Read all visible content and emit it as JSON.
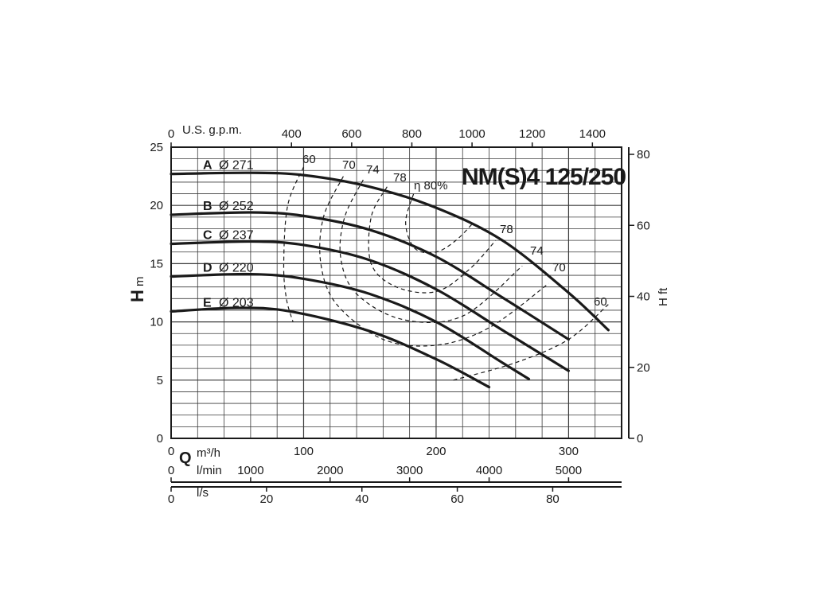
{
  "title": "NM(S)4 125/250",
  "axes": {
    "h_letter": "H",
    "h_unit": "m",
    "hft_label": "H ft",
    "q_letter": "Q",
    "top_unit": "U.S. g.p.m.",
    "m3h_unit": "m³/h",
    "lmin_unit": "l/min",
    "ls_unit": "l/s"
  },
  "ticks": {
    "left_m": [
      "0",
      "5",
      "10",
      "15",
      "20",
      "25"
    ],
    "right_ft": [
      "0",
      "20",
      "40",
      "60",
      "80"
    ],
    "gpm": [
      "0",
      "400",
      "600",
      "800",
      "1000",
      "1200",
      "1400"
    ],
    "m3h": [
      "0",
      "100",
      "200",
      "300"
    ],
    "lmin": [
      "0",
      "1000",
      "2000",
      "3000",
      "4000",
      "5000"
    ],
    "ls": [
      "0",
      "20",
      "40",
      "60",
      "80"
    ]
  },
  "chart_data": {
    "type": "line",
    "title": "NM(S)4 125/250",
    "xlabel": "Q m³/h",
    "ylabel": "H m",
    "xlim": [
      0,
      340
    ],
    "ylim": [
      0,
      25
    ],
    "y2label": "H ft",
    "y2lim": [
      0,
      82
    ],
    "series": [
      {
        "name": "A",
        "diameter": "Ø 271",
        "x": [
          0,
          60,
          100,
          150,
          200,
          250,
          300,
          330
        ],
        "y": [
          22.7,
          22.8,
          22.6,
          21.6,
          19.8,
          17.0,
          12.5,
          9.3
        ]
      },
      {
        "name": "B",
        "diameter": "Ø 252",
        "x": [
          0,
          60,
          100,
          150,
          200,
          250,
          300
        ],
        "y": [
          19.2,
          19.4,
          19.1,
          17.9,
          15.6,
          12.1,
          8.5
        ]
      },
      {
        "name": "C",
        "diameter": "Ø 237",
        "x": [
          0,
          60,
          100,
          150,
          200,
          250,
          300
        ],
        "y": [
          16.7,
          16.9,
          16.6,
          15.3,
          12.8,
          9.3,
          5.8
        ]
      },
      {
        "name": "D",
        "diameter": "Ø 220",
        "x": [
          0,
          60,
          100,
          150,
          200,
          250,
          270
        ],
        "y": [
          13.9,
          14.1,
          13.7,
          12.4,
          10.0,
          6.5,
          5.1
        ]
      },
      {
        "name": "E",
        "diameter": "Ø 203",
        "x": [
          0,
          50,
          90,
          150,
          200,
          240
        ],
        "y": [
          10.9,
          11.2,
          10.9,
          9.2,
          6.8,
          4.4
        ]
      }
    ],
    "efficiency_labels": [
      "60",
      "70",
      "74",
      "78",
      "η 80%"
    ],
    "efficiency_right_labels": [
      "78",
      "74",
      "70",
      "60"
    ],
    "grid": true
  }
}
